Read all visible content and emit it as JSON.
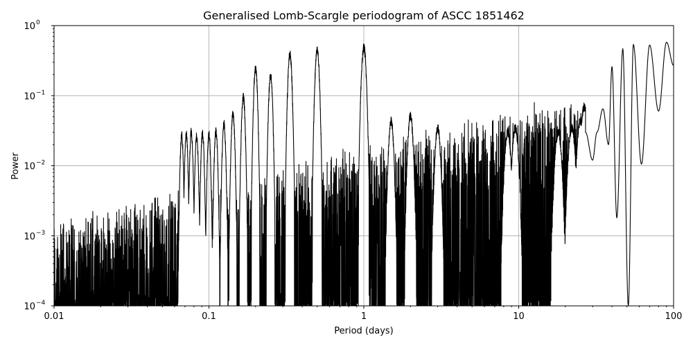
{
  "chart_data": {
    "type": "line",
    "title": "Generalised Lomb-Scargle periodogram of ASCC 1851462",
    "xlabel": "Period (days)",
    "ylabel": "Power",
    "xscale": "log",
    "yscale": "log",
    "xlim": [
      0.01,
      100
    ],
    "ylim": [
      0.0001,
      1
    ],
    "grid": true,
    "x_ticks": [
      {
        "value": 0.01,
        "label": "0.01"
      },
      {
        "value": 0.1,
        "label": "0.1"
      },
      {
        "value": 1,
        "label": "1"
      },
      {
        "value": 10,
        "label": "10"
      },
      {
        "value": 100,
        "label": "100"
      }
    ],
    "y_ticks": [
      {
        "value": 0.0001,
        "base": "10",
        "exp": "−4"
      },
      {
        "value": 0.001,
        "base": "10",
        "exp": "−3"
      },
      {
        "value": 0.01,
        "base": "10",
        "exp": "−2"
      },
      {
        "value": 0.1,
        "base": "10",
        "exp": "−1"
      },
      {
        "value": 1,
        "base": "10",
        "exp": "0"
      }
    ],
    "line_color": "#000000",
    "peaks": [
      {
        "period": 0.0667,
        "power": 0.032
      },
      {
        "period": 0.0714,
        "power": 0.032
      },
      {
        "period": 0.0769,
        "power": 0.035
      },
      {
        "period": 0.0833,
        "power": 0.03
      },
      {
        "period": 0.0909,
        "power": 0.033
      },
      {
        "period": 0.1,
        "power": 0.032
      },
      {
        "period": 0.111,
        "power": 0.035
      },
      {
        "period": 0.125,
        "power": 0.045
      },
      {
        "period": 0.1429,
        "power": 0.065
      },
      {
        "period": 0.1667,
        "power": 0.11
      },
      {
        "period": 0.2,
        "power": 0.28
      },
      {
        "period": 0.25,
        "power": 0.22
      },
      {
        "period": 0.3333,
        "power": 0.45
      },
      {
        "period": 0.5,
        "power": 0.52
      },
      {
        "period": 1.0,
        "power": 0.57
      },
      {
        "period": 1.5,
        "power": 0.05
      },
      {
        "period": 2.0,
        "power": 0.06
      },
      {
        "period": 3.0,
        "power": 0.04
      },
      {
        "period": 8.5,
        "power": 0.035
      },
      {
        "period": 9.5,
        "power": 0.04
      },
      {
        "period": 18,
        "power": 0.035
      },
      {
        "period": 22,
        "power": 0.04
      },
      {
        "period": 25,
        "power": 0.05
      },
      {
        "period": 26.5,
        "power": 0.08
      },
      {
        "period": 30,
        "power": 0.03
      },
      {
        "period": 35,
        "power": 0.065
      },
      {
        "period": 40,
        "power": 0.26
      },
      {
        "period": 47,
        "power": 0.47
      },
      {
        "period": 55,
        "power": 0.54
      },
      {
        "period": 70,
        "power": 0.53
      },
      {
        "period": 90,
        "power": 0.58
      }
    ],
    "dips": [
      {
        "period": 43,
        "power": 0.0018
      },
      {
        "period": 51,
        "power": 0.0001
      },
      {
        "period": 62,
        "power": 0.0105
      },
      {
        "period": 80,
        "power": 0.06
      },
      {
        "period": 100,
        "power": 0.27
      }
    ]
  }
}
